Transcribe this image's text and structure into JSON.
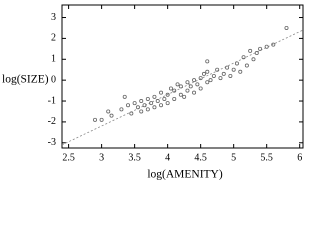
{
  "chart_data": {
    "type": "scatter",
    "x_label": "log(AMENITY)",
    "y_label": "log(SIZE)",
    "xlim": [
      2.4,
      6.05
    ],
    "ylim": [
      -3.25,
      3.6
    ],
    "xticks": [
      2.5,
      3,
      3.5,
      4,
      4.5,
      5,
      5.5,
      6
    ],
    "yticks": [
      -3,
      -2,
      -1,
      0,
      1,
      2,
      3
    ],
    "color": "#666666",
    "x": [
      2.9,
      3.1,
      3.15,
      3.3,
      3.4,
      3.45,
      3.5,
      3.55,
      3.6,
      3.6,
      3.65,
      3.7,
      3.7,
      3.75,
      3.8,
      3.8,
      3.85,
      3.9,
      3.9,
      3.95,
      4.0,
      4.0,
      4.05,
      4.1,
      4.1,
      4.15,
      4.2,
      4.2,
      4.25,
      4.3,
      4.3,
      4.35,
      4.4,
      4.4,
      4.45,
      4.5,
      4.5,
      4.55,
      4.6,
      4.6,
      4.65,
      4.7,
      4.75,
      4.8,
      4.85,
      4.9,
      4.95,
      5.0,
      5.05,
      5.1,
      5.15,
      5.2,
      5.25,
      5.3,
      5.35,
      5.4,
      5.5,
      5.6,
      5.8,
      3.35,
      4.6,
      3.0
    ],
    "y": [
      -1.9,
      -1.5,
      -1.7,
      -1.4,
      -1.2,
      -1.6,
      -1.1,
      -1.3,
      -1.5,
      -1.0,
      -1.2,
      -1.4,
      -0.9,
      -1.1,
      -1.3,
      -0.8,
      -1.0,
      -1.2,
      -0.6,
      -0.9,
      -1.1,
      -0.7,
      -0.4,
      -0.9,
      -0.5,
      -0.2,
      -0.7,
      -0.3,
      -0.8,
      -0.1,
      -0.5,
      -0.3,
      0.0,
      -0.6,
      -0.2,
      0.1,
      -0.4,
      0.3,
      -0.1,
      0.4,
      0.0,
      0.2,
      0.5,
      0.1,
      0.3,
      0.6,
      0.2,
      0.5,
      0.8,
      0.4,
      1.1,
      0.7,
      1.4,
      1.0,
      1.3,
      1.5,
      1.6,
      1.7,
      2.5,
      -0.8,
      0.9,
      -1.9
    ],
    "fit_line": {
      "x": [
        2.4,
        6.05
      ],
      "y": [
        -3.1,
        2.4
      ]
    }
  }
}
